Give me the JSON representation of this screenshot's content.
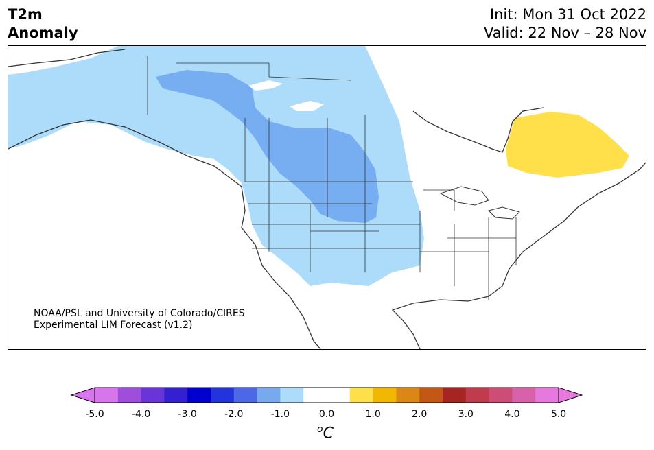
{
  "title": {
    "left_line1": "T2m",
    "left_line2": "Anomaly",
    "right_line1": "Init: Mon 31 Oct 2022",
    "right_line2": "Valid: 22 Nov – 28 Nov"
  },
  "credit": {
    "line1": "NOAA/PSL and University of Colorado/CIRES",
    "line2": "Experimental LIM Forecast (v1.2)"
  },
  "colorbar": {
    "unit_base": "C",
    "unit_sup": "o",
    "min_color": "#d874ec",
    "max_color": "#e779de",
    "colors": [
      "#d874ec",
      "#9e4ddd",
      "#6934d8",
      "#3420d2",
      "#0000d0",
      "#2434dd",
      "#4d68e6",
      "#77a9ee",
      "#addcfb",
      "#ffffff",
      "#ffffff",
      "#ffe04a",
      "#f2b700",
      "#dc8613",
      "#c55715",
      "#a72423",
      "#c13a4d",
      "#cd4d76",
      "#d762ab",
      "#e779de"
    ],
    "ticks": [
      "-5.0",
      "-4.0",
      "-3.0",
      "-2.0",
      "-1.0",
      "0.0",
      "1.0",
      "2.0",
      "3.0",
      "4.0",
      "5.0"
    ]
  },
  "map": {
    "region": "North America",
    "anomaly_colors": {
      "light_blue": "#addcfb",
      "medium_blue": "#77aef2",
      "yellow": "#ffe04a"
    }
  }
}
